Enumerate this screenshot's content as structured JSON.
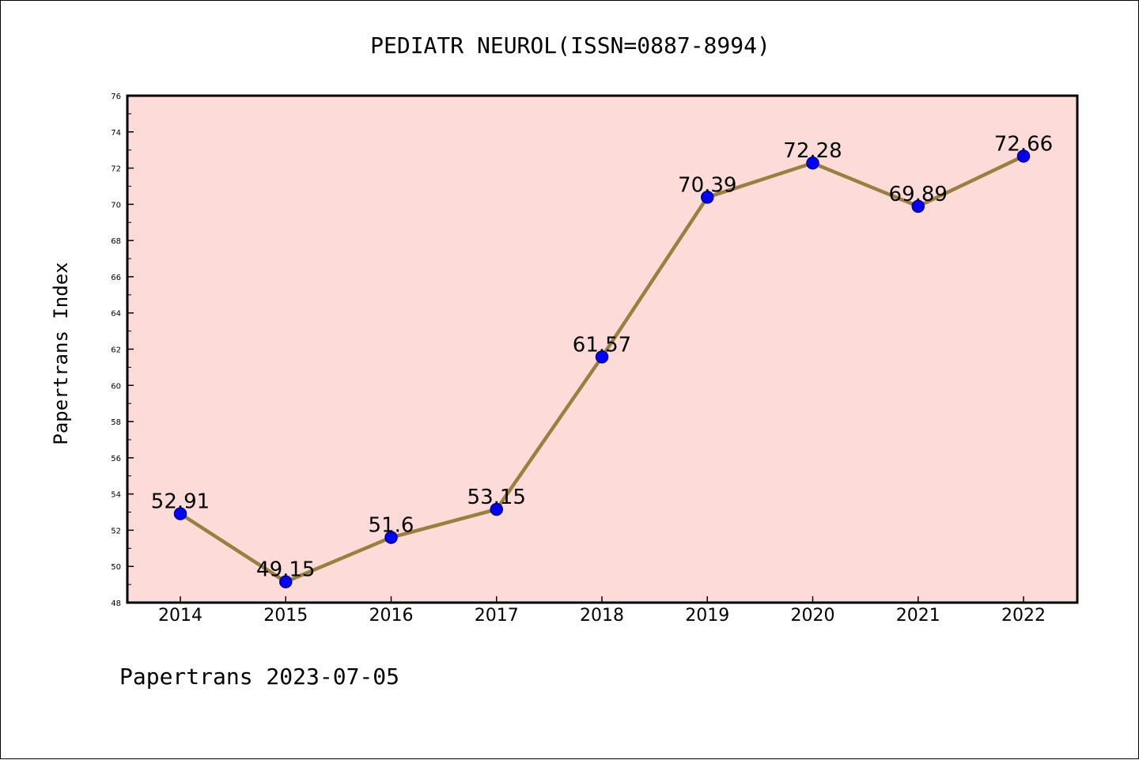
{
  "chart_data": {
    "type": "line",
    "title": "PEDIATR NEUROL(ISSN=0887-8994)",
    "ylabel": "Papertrans Index",
    "xlabel": "",
    "footer": "Papertrans 2023-07-05",
    "categories": [
      "2014",
      "2015",
      "2016",
      "2017",
      "2018",
      "2019",
      "2020",
      "2021",
      "2022"
    ],
    "values": [
      52.91,
      49.15,
      51.6,
      53.15,
      61.57,
      70.39,
      72.28,
      69.89,
      72.66
    ],
    "data_labels": [
      "52.91",
      "49.15",
      "51.6",
      "53.15",
      "61.57",
      "70.39",
      "72.28",
      "69.89",
      "72.66"
    ],
    "ylim": [
      48,
      76
    ],
    "yticks": [
      48,
      50,
      52,
      54,
      56,
      58,
      60,
      62,
      64,
      66,
      68,
      70,
      72,
      74,
      76
    ],
    "grid": false,
    "legend": "none",
    "colors": {
      "plot_background": "#fddbd9",
      "line": "#9b7f3c",
      "marker": "#0000ff",
      "marker_edge": "#00008b",
      "text": "#000000"
    }
  }
}
